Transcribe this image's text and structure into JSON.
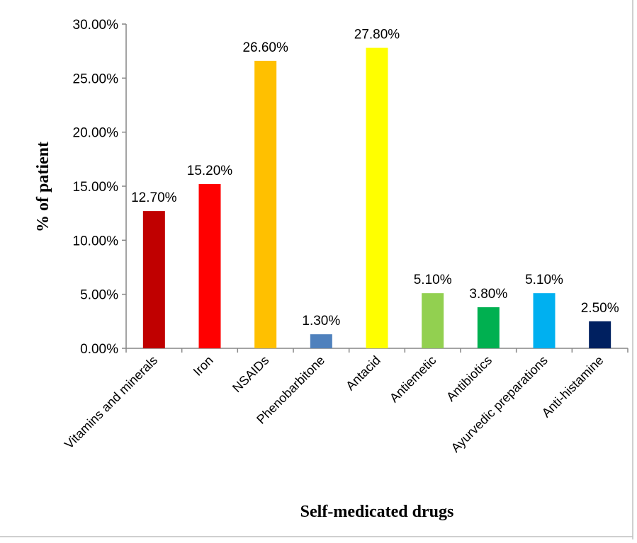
{
  "chart_data": {
    "type": "bar",
    "title": "",
    "xlabel": "Self-medicated drugs",
    "ylabel": "% of patient",
    "ylim": [
      0,
      30
    ],
    "yticks": [
      "0.00%",
      "5.00%",
      "10.00%",
      "15.00%",
      "20.00%",
      "25.00%",
      "30.00%"
    ],
    "grid": false,
    "legend": "none",
    "categories": [
      "Vitamins and minerals",
      "Iron",
      "NSAIDs",
      "Phenobarbitone",
      "Antacid",
      "Antiemetic",
      "Antibiotics",
      "Ayurvedic preparations",
      "Anti-histamine"
    ],
    "values": [
      12.7,
      15.2,
      26.6,
      1.3,
      27.8,
      5.1,
      3.8,
      5.1,
      2.5
    ],
    "data_labels": [
      "12.70%",
      "15.20%",
      "26.60%",
      "1.30%",
      "27.80%",
      "5.10%",
      "3.80%",
      "5.10%",
      "2.50%"
    ],
    "colors": [
      "#c00000",
      "#ff0000",
      "#ffc000",
      "#4f81bd",
      "#ffff00",
      "#92d050",
      "#00b050",
      "#00b0f0",
      "#002060"
    ]
  }
}
